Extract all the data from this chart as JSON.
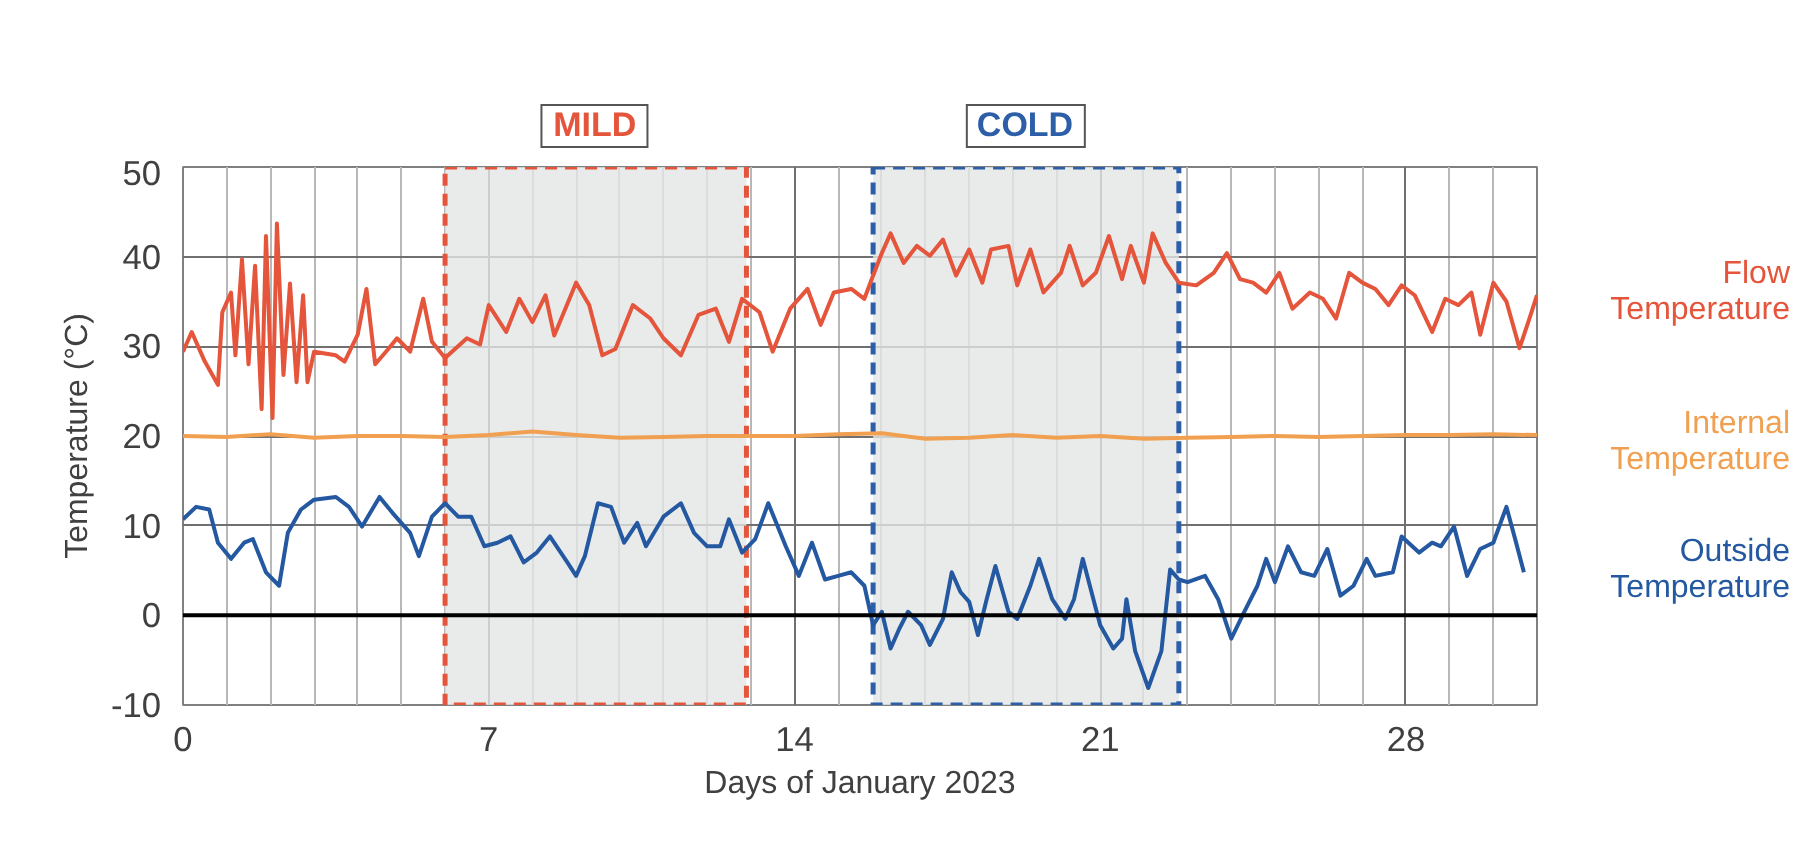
{
  "chart_data": {
    "type": "line",
    "xlabel": "Days of January 2023",
    "ylabel": "Temperature (°C)",
    "xlim": [
      0,
      31
    ],
    "xticks": [
      0,
      7,
      14,
      21,
      28
    ],
    "ylim": [
      -10,
      50
    ],
    "yticks": [
      -10,
      0,
      10,
      20,
      30,
      40,
      50
    ],
    "grid": true,
    "legend": false,
    "bands": [
      {
        "axis": "x",
        "from": 6,
        "to": 12.9,
        "label": "MILD",
        "color": "#e4553b"
      },
      {
        "axis": "x",
        "from": 15.8,
        "to": 22.8,
        "label": "COLD",
        "color": "#2d5ea8"
      }
    ],
    "ref_lines": [
      {
        "axis": "y",
        "value": 0,
        "color": "#000000"
      }
    ],
    "series": [
      {
        "name": "Flow Temperature",
        "color": "#e4553b",
        "x": [
          0,
          0.2,
          0.5,
          0.8,
          0.9,
          1.1,
          1.2,
          1.35,
          1.5,
          1.65,
          1.8,
          1.9,
          2.05,
          2.15,
          2.3,
          2.45,
          2.6,
          2.75,
          2.85,
          3.0,
          3.5,
          3.7,
          4.0,
          4.2,
          4.4,
          4.7,
          4.9,
          5.2,
          5.5,
          5.7,
          6.0,
          6.5,
          6.8,
          7.0,
          7.4,
          7.7,
          8.0,
          8.3,
          8.5,
          9.0,
          9.3,
          9.6,
          9.9,
          10.3,
          10.7,
          11.0,
          11.4,
          11.8,
          12.2,
          12.5,
          12.8,
          13.2,
          13.5,
          13.9,
          14.3,
          14.6,
          14.9,
          15.3,
          15.6,
          15.8,
          16.0,
          16.2,
          16.5,
          16.8,
          17.1,
          17.4,
          17.7,
          18.0,
          18.3,
          18.5,
          18.9,
          19.1,
          19.4,
          19.7,
          20.1,
          20.3,
          20.6,
          20.9,
          21.2,
          21.5,
          21.7,
          22.0,
          22.2,
          22.5,
          22.8,
          23.2,
          23.6,
          23.9,
          24.2,
          24.5,
          24.8,
          25.1,
          25.4,
          25.8,
          26.1,
          26.4,
          26.7,
          27.0,
          27.3,
          27.6,
          27.9,
          28.2,
          28.6,
          28.9,
          29.2,
          29.5,
          29.7,
          30.0,
          30.3,
          30.6,
          30.8,
          31.0
        ],
        "values": [
          29.4,
          31.6,
          28.3,
          25.7,
          33.8,
          36,
          29,
          39.7,
          28,
          39,
          23,
          42.3,
          22,
          43.7,
          26.8,
          37,
          26,
          35.7,
          26,
          29.4,
          29,
          28.3,
          31.3,
          36.4,
          28,
          29.7,
          30.9,
          29.4,
          35.3,
          30.5,
          28.7,
          30.9,
          30.2,
          34.6,
          31.6,
          35.3,
          32.7,
          35.7,
          31.2,
          37.1,
          34.6,
          29,
          29.7,
          34.6,
          33.1,
          30.9,
          29,
          33.5,
          34.2,
          30.5,
          35.3,
          33.8,
          29.4,
          34.2,
          36.4,
          32.4,
          36,
          36.4,
          35.3,
          37.9,
          40.4,
          42.6,
          39.3,
          41.2,
          40.1,
          41.9,
          37.9,
          40.8,
          37.1,
          40.8,
          41.2,
          36.8,
          40.8,
          36,
          38.2,
          41.2,
          36.8,
          38.2,
          42.3,
          37.5,
          41.2,
          37.1,
          42.6,
          39.3,
          37.1,
          36.8,
          38.2,
          40.4,
          37.5,
          37.1,
          36,
          38.2,
          34.2,
          36,
          35.3,
          33.1,
          38.2,
          37.1,
          36.4,
          34.6,
          36.8,
          35.7,
          31.6,
          35.3,
          34.6,
          36,
          31.3,
          37.1,
          35,
          29.8,
          32.7,
          35.7
        ]
      },
      {
        "name": "Internal Temperature",
        "color": "#f0a050",
        "x": [
          0,
          1,
          2,
          3,
          4,
          5,
          6,
          7,
          8,
          9,
          10,
          11,
          12,
          13,
          14,
          15,
          16,
          17,
          18,
          19,
          20,
          21,
          22,
          23,
          24,
          25,
          26,
          27,
          28,
          29,
          30,
          31
        ],
        "values": [
          20,
          19.9,
          20.2,
          19.8,
          20,
          20,
          19.9,
          20.1,
          20.5,
          20.1,
          19.8,
          19.9,
          20,
          20,
          20,
          20.2,
          20.3,
          19.7,
          19.8,
          20.1,
          19.8,
          20,
          19.7,
          19.8,
          19.9,
          20,
          19.9,
          20,
          20.1,
          20.1,
          20.2,
          20.1
        ]
      },
      {
        "name": "Outside Temperature",
        "color": "#2458a0",
        "x": [
          0,
          0.3,
          0.6,
          0.8,
          1.1,
          1.4,
          1.6,
          1.9,
          2.2,
          2.4,
          2.7,
          3.0,
          3.5,
          3.8,
          4.1,
          4.5,
          4.8,
          5.2,
          5.4,
          5.7,
          6.0,
          6.3,
          6.6,
          6.9,
          7.2,
          7.5,
          7.8,
          8.1,
          8.4,
          8.8,
          9.0,
          9.2,
          9.5,
          9.8,
          10.1,
          10.4,
          10.6,
          11.0,
          11.4,
          11.7,
          12.0,
          12.3,
          12.5,
          12.8,
          13.1,
          13.4,
          13.8,
          14.1,
          14.4,
          14.7,
          15.0,
          15.3,
          15.6,
          15.8,
          16.0,
          16.2,
          16.4,
          16.6,
          16.9,
          17.1,
          17.4,
          17.6,
          17.8,
          18.0,
          18.2,
          18.4,
          18.6,
          18.9,
          19.1,
          19.4,
          19.6,
          19.9,
          20.2,
          20.4,
          20.6,
          20.8,
          21.0,
          21.3,
          21.5,
          21.6,
          21.8,
          22.1,
          22.4,
          22.6,
          22.8,
          23.0,
          23.4,
          23.7,
          24.0,
          24.3,
          24.6,
          24.8,
          25.0,
          25.3,
          25.6,
          25.9,
          26.2,
          26.5,
          26.8,
          27.1,
          27.3,
          27.7,
          27.9,
          28.3,
          28.6,
          28.8,
          29.1,
          29.4,
          29.7,
          30.0,
          30.3,
          30.5,
          30.7
        ],
        "values": [
          10.7,
          12.1,
          11.8,
          8.1,
          6.3,
          8.1,
          8.5,
          4.8,
          3.3,
          9.2,
          11.8,
          12.9,
          13.2,
          12.1,
          9.9,
          13.2,
          11.4,
          9.2,
          6.6,
          11,
          12.5,
          11,
          11,
          7.7,
          8.1,
          8.8,
          5.9,
          7,
          8.8,
          5.9,
          4.4,
          6.6,
          12.5,
          12.1,
          8.1,
          10.3,
          7.7,
          11,
          12.5,
          9.2,
          7.7,
          7.7,
          10.7,
          7,
          8.5,
          12.5,
          7.7,
          4.4,
          8.1,
          4,
          4.4,
          4.8,
          3.3,
          -1.1,
          0.4,
          -3.7,
          -1.5,
          0.4,
          -1.1,
          -3.3,
          -0.4,
          4.8,
          2.6,
          1.5,
          -2.2,
          1.8,
          5.5,
          0.4,
          -0.4,
          3.3,
          6.3,
          1.8,
          -0.4,
          1.8,
          6.3,
          2.6,
          -1.1,
          -3.7,
          -2.6,
          1.8,
          -4,
          -8.1,
          -4,
          5.1,
          4,
          3.7,
          4.4,
          1.8,
          -2.6,
          0.4,
          3.3,
          6.3,
          3.7,
          7.7,
          4.8,
          4.4,
          7.4,
          2.2,
          3.3,
          6.3,
          4.4,
          4.8,
          8.8,
          7,
          8.1,
          7.7,
          9.9,
          4.4,
          7.4,
          8.1,
          12.1,
          8.5,
          4.8
        ]
      }
    ]
  }
}
